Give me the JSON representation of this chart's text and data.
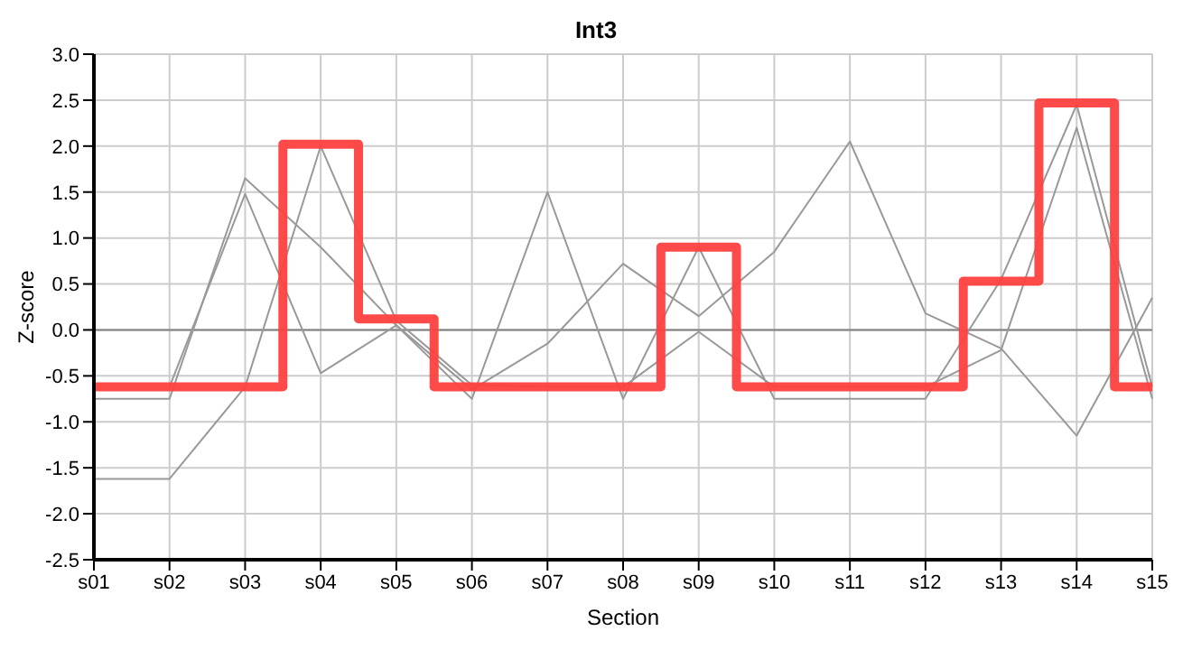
{
  "chart_data": {
    "type": "line",
    "title": "Int3",
    "xlabel": "Section",
    "ylabel": "Z-score",
    "categories": [
      "s01",
      "s02",
      "s03",
      "s04",
      "s05",
      "s06",
      "s07",
      "s08",
      "s09",
      "s10",
      "s11",
      "s12",
      "s13",
      "s14",
      "s15"
    ],
    "series": [
      {
        "type": "line",
        "color": "#999999",
        "values": [
          -0.75,
          -0.75,
          1.65,
          0.9,
          0.05,
          -0.65,
          -0.15,
          0.72,
          0.15,
          0.85,
          2.05,
          0.18,
          -0.2,
          -1.15,
          0.35
        ]
      },
      {
        "type": "line",
        "color": "#999999",
        "values": [
          -1.62,
          -1.62,
          -0.62,
          2.0,
          0.1,
          -0.6,
          -0.62,
          -0.62,
          -0.02,
          -0.62,
          -0.62,
          -0.62,
          -0.22,
          2.2,
          -0.75
        ]
      },
      {
        "type": "line",
        "color": "#999999",
        "values": [
          null,
          -0.62,
          1.48,
          -0.47,
          0.05,
          -0.75,
          1.5,
          -0.75,
          0.9,
          -0.75,
          -0.75,
          -0.75,
          0.55,
          2.45,
          -0.62
        ]
      },
      {
        "type": "step",
        "color": "#ff4040",
        "values": [
          -0.62,
          -0.62,
          -0.62,
          2.02,
          0.12,
          -0.62,
          -0.62,
          -0.62,
          0.9,
          -0.62,
          -0.62,
          -0.62,
          0.53,
          2.47,
          -0.62
        ]
      }
    ],
    "ylim": [
      -2.5,
      3.0
    ],
    "yticks": [
      {
        "value": -2.5,
        "label": "-2.5"
      },
      {
        "value": -2,
        "label": "-2.0"
      },
      {
        "value": -1.5,
        "label": "-1.5"
      },
      {
        "value": -1,
        "label": "-1.0"
      },
      {
        "value": -0.5,
        "label": "-0.5"
      },
      {
        "value": 0,
        "label": "0.0"
      },
      {
        "value": 0.5,
        "label": "0.5"
      },
      {
        "value": 1,
        "label": "1.0"
      },
      {
        "value": 1.5,
        "label": "1.5"
      },
      {
        "value": 2,
        "label": "2.0"
      },
      {
        "value": 2.5,
        "label": "2.5"
      },
      {
        "value": 3,
        "label": "3.0"
      }
    ],
    "ref_lines": [
      {
        "axis": "y",
        "value": 0,
        "color": "#808080"
      }
    ],
    "grid": true,
    "marker": "none",
    "legend": false
  }
}
